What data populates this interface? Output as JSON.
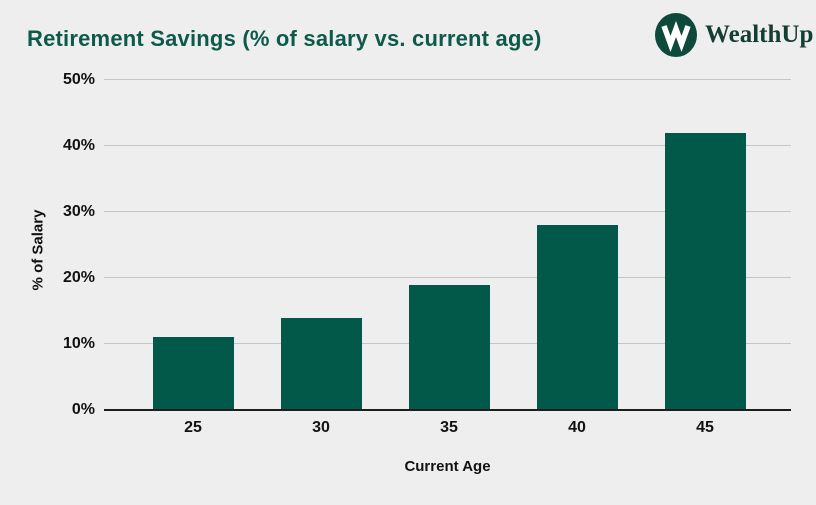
{
  "header": {
    "title": "Retirement Savings (% of salary vs. current age)",
    "logo": {
      "brand": "WealthUp",
      "monogram": "W"
    }
  },
  "chart_data": {
    "type": "bar",
    "title": "Retirement Savings (% of salary vs. current age)",
    "categories": [
      "25",
      "30",
      "35",
      "40",
      "45"
    ],
    "values": [
      11,
      14,
      19,
      28,
      42
    ],
    "xlabel": "Current Age",
    "ylabel": "% of Salary",
    "ylim": [
      0,
      50
    ],
    "yticks": [
      0,
      10,
      20,
      30,
      40,
      50
    ],
    "ytick_labels": [
      "0%",
      "10%",
      "20%",
      "30%",
      "40%",
      "50%"
    ],
    "grid": true,
    "legend": "none",
    "bar_color": "#02594a"
  },
  "colors": {
    "background": "#eeeeee",
    "title_green": "#0d5a4a",
    "bar_green": "#02594a",
    "logo_circle_green": "#0e4a3b",
    "gridline_gray": "#c6c6c6",
    "axis_black": "#1d1d1d"
  }
}
